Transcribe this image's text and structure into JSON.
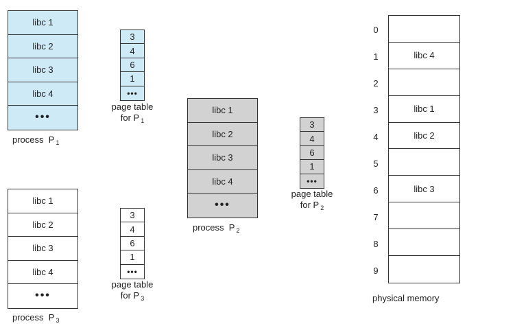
{
  "process1": {
    "cells": [
      "libc 1",
      "libc 2",
      "libc 3",
      "libc 4",
      "•••"
    ],
    "label": "process",
    "sub": "1",
    "color": "#cdeaf6"
  },
  "page_table1": {
    "entries": [
      "3",
      "4",
      "6",
      "1",
      "•••"
    ],
    "label_line1": "page table",
    "label_line2": "for P",
    "sub": "1",
    "color": "#cdeaf6"
  },
  "process2": {
    "cells": [
      "libc 1",
      "libc 2",
      "libc 3",
      "libc 4",
      "•••"
    ],
    "label": "process",
    "sub": "2",
    "color": "#d2d2d2"
  },
  "page_table2": {
    "entries": [
      "3",
      "4",
      "6",
      "1",
      "•••"
    ],
    "label_line1": "page table",
    "label_line2": "for P",
    "sub": "2",
    "color": "#d2d2d2"
  },
  "process3": {
    "cells": [
      "libc 1",
      "libc 2",
      "libc 3",
      "libc 4",
      "•••"
    ],
    "label": "process",
    "sub": "3",
    "color": "#ffffff"
  },
  "page_table3": {
    "entries": [
      "3",
      "4",
      "6",
      "1",
      "•••"
    ],
    "label_line1": "page table",
    "label_line2": "for P",
    "sub": "3",
    "color": "#ffffff"
  },
  "physical_memory": {
    "label": "physical memory",
    "frame_numbers": [
      "0",
      "1",
      "2",
      "3",
      "4",
      "5",
      "6",
      "7",
      "8",
      "9"
    ],
    "frames": [
      "",
      "libc 4",
      "",
      "libc 1",
      "libc 2",
      "",
      "libc 3",
      "",
      "",
      ""
    ]
  }
}
